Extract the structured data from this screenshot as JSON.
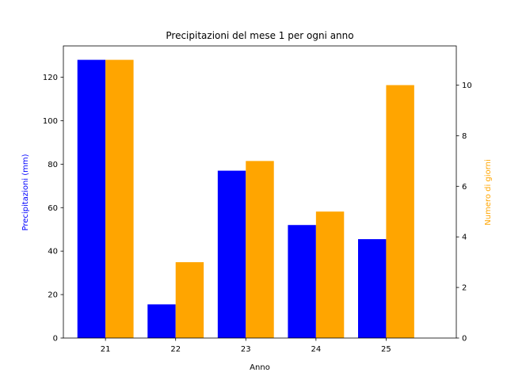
{
  "chart_data": {
    "type": "bar",
    "title": "Precipitazioni del mese 1 per ogni anno",
    "xlabel": "Anno",
    "categories": [
      "21",
      "22",
      "23",
      "24",
      "25"
    ],
    "series": [
      {
        "name": "Precipitazioni (mm)",
        "axis": "left",
        "color": "#0000ff",
        "values": [
          128,
          15.5,
          77,
          52,
          45.5
        ]
      },
      {
        "name": "Numero di giorni",
        "axis": "right",
        "color": "#ffa500",
        "values": [
          11,
          3,
          7,
          5,
          10
        ]
      }
    ],
    "ylabel_left": "Precipitazioni (mm)",
    "ylabel_right": "Numero di giorni",
    "ylim_left": [
      0,
      134.4
    ],
    "ylim_right": [
      0,
      11.55
    ],
    "yticks_left": [
      "0",
      "20",
      "40",
      "60",
      "80",
      "100",
      "120"
    ],
    "yticks_right": [
      "0",
      "2",
      "4",
      "6",
      "8",
      "10"
    ],
    "left_label_color": "#0000ff",
    "right_label_color": "#ffa500",
    "grid": false,
    "legend": "none"
  }
}
